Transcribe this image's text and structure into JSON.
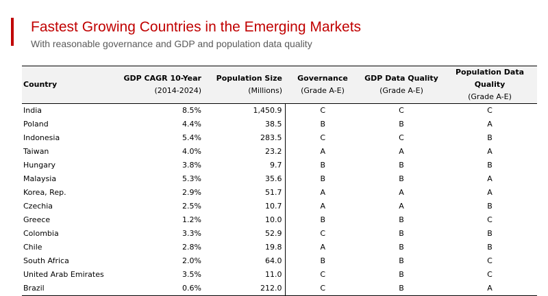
{
  "header": {
    "title": "Fastest Growing Countries in the Emerging Markets",
    "subtitle": "With reasonable governance and GDP and population data quality"
  },
  "colors": {
    "accent": "#c00000",
    "header_bg": "#f2f2f2",
    "subtitle": "#595959"
  },
  "chart_data": {
    "type": "table",
    "columns": [
      {
        "key": "country",
        "label": "Country",
        "sublabel": ""
      },
      {
        "key": "gdp_cagr",
        "label": "GDP CAGR 10-Year",
        "sublabel": "(2014-2024)"
      },
      {
        "key": "population",
        "label": "Population Size",
        "sublabel": "(Millions)"
      },
      {
        "key": "governance",
        "label": "Governance",
        "sublabel": "(Grade A-E)"
      },
      {
        "key": "gdp_quality",
        "label": "GDP Data Quality",
        "sublabel": "(Grade A-E)"
      },
      {
        "key": "pop_quality",
        "label": "Population Data Quality",
        "sublabel": "(Grade A-E)"
      }
    ],
    "rows": [
      {
        "country": "India",
        "gdp_cagr": "8.5%",
        "population": "1,450.9",
        "governance": "C",
        "gdp_quality": "C",
        "pop_quality": "C"
      },
      {
        "country": "Poland",
        "gdp_cagr": "4.4%",
        "population": "38.5",
        "governance": "B",
        "gdp_quality": "B",
        "pop_quality": "A"
      },
      {
        "country": "Indonesia",
        "gdp_cagr": "5.4%",
        "population": "283.5",
        "governance": "C",
        "gdp_quality": "C",
        "pop_quality": "B"
      },
      {
        "country": "Taiwan",
        "gdp_cagr": "4.0%",
        "population": "23.2",
        "governance": "A",
        "gdp_quality": "A",
        "pop_quality": "A"
      },
      {
        "country": "Hungary",
        "gdp_cagr": "3.8%",
        "population": "9.7",
        "governance": "B",
        "gdp_quality": "B",
        "pop_quality": "B"
      },
      {
        "country": "Malaysia",
        "gdp_cagr": "5.3%",
        "population": "35.6",
        "governance": "B",
        "gdp_quality": "B",
        "pop_quality": "A"
      },
      {
        "country": "Korea, Rep.",
        "gdp_cagr": "2.9%",
        "population": "51.7",
        "governance": "A",
        "gdp_quality": "A",
        "pop_quality": "A"
      },
      {
        "country": "Czechia",
        "gdp_cagr": "2.5%",
        "population": "10.7",
        "governance": "A",
        "gdp_quality": "A",
        "pop_quality": "B"
      },
      {
        "country": "Greece",
        "gdp_cagr": "1.2%",
        "population": "10.0",
        "governance": "B",
        "gdp_quality": "B",
        "pop_quality": "C"
      },
      {
        "country": "Colombia",
        "gdp_cagr": "3.3%",
        "population": "52.9",
        "governance": "C",
        "gdp_quality": "B",
        "pop_quality": "B"
      },
      {
        "country": "Chile",
        "gdp_cagr": "2.8%",
        "population": "19.8",
        "governance": "A",
        "gdp_quality": "B",
        "pop_quality": "B"
      },
      {
        "country": "South Africa",
        "gdp_cagr": "2.0%",
        "population": "64.0",
        "governance": "B",
        "gdp_quality": "B",
        "pop_quality": "C"
      },
      {
        "country": "United Arab Emirates",
        "gdp_cagr": "3.5%",
        "population": "11.0",
        "governance": "C",
        "gdp_quality": "B",
        "pop_quality": "C"
      },
      {
        "country": "Brazil",
        "gdp_cagr": "0.6%",
        "population": "212.0",
        "governance": "C",
        "gdp_quality": "B",
        "pop_quality": "A"
      }
    ]
  }
}
